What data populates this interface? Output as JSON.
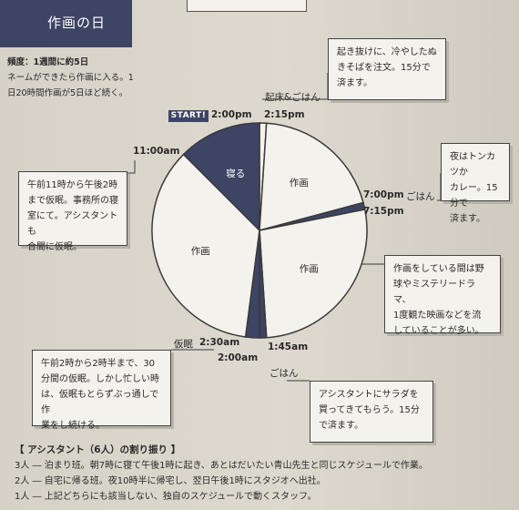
{
  "title": "作画の日",
  "intro": {
    "frequency": "頻度：1週間に約5日",
    "line1": "ネームができたら作画に入る。1",
    "line2": "日20時間作画が5日ほど続く。"
  },
  "start_badge": "START!",
  "times": {
    "t1400": "2:00pm",
    "t1415": "2:15pm",
    "t1100": "11:00am",
    "t1900": "7:00pm",
    "t1915": "7:15pm",
    "t0230": "2:30am",
    "t0200": "2:00am",
    "t0145": "1:45am"
  },
  "events": {
    "wake": "起床&ごはん",
    "dinner": "ごはん",
    "nap": "仮眠",
    "meal2": "ごはん"
  },
  "segments": {
    "sleep": "寝る",
    "work": "作画"
  },
  "notes": {
    "wakeup": [
      "起き抜けに、冷やしたぬ",
      "きそばを注文。15分で",
      "済ます。"
    ],
    "dinner": [
      "夜はトンカツか",
      "カレー。15分で",
      "済ます。"
    ],
    "work": [
      "作画をしている間は野",
      "球やミステリードラマ、",
      "1度観た映画などを流",
      "していることが多い。"
    ],
    "nap_afternoon": [
      "午前11時から午後2時",
      "まで仮眠。事務所の寝",
      "室にて。アシスタントも",
      "合間に仮眠。"
    ],
    "nap_night": [
      "午前2時から2時半まで、30",
      "分間の仮眠。しかし忙しい時",
      "は、仮眠もとらずぶっ通しで作",
      "業をし続ける。"
    ],
    "salad": [
      "アシスタントにサラダを",
      "買ってきてもらう。15分",
      "で済ます。"
    ]
  },
  "staff": {
    "heading": "【 アシスタント（6人）の割り振り 】",
    "rows": [
      "3人 ― 泊まり班。朝7時に寝て午後1時に起き、あとはだいたい青山先生と同じスケジュールで作業。",
      "2人 ― 自宅に帰る班。夜10時半に帰宅し、翌日午後1時にスタジオへ出社。",
      "1人 ― 上記どちらにも該当しない、独自のスケジュールで動くスタッフ。"
    ]
  },
  "colors": {
    "navy": "#3d4464",
    "paper": "#f4f2ec",
    "line": "#3a3a3a"
  },
  "chart_data": {
    "type": "pie",
    "unit": "hours of day",
    "start": "2:00pm",
    "slices": [
      {
        "label": "起床&ごはん",
        "from": "2:00pm",
        "to": "2:15pm",
        "hours": 0.25,
        "color": "#f4f2ec"
      },
      {
        "label": "作画",
        "from": "2:15pm",
        "to": "7:00pm",
        "hours": 4.75,
        "color": "#f4f2ec"
      },
      {
        "label": "ごはん",
        "from": "7:00pm",
        "to": "7:15pm",
        "hours": 0.25,
        "color": "#3d4464"
      },
      {
        "label": "作画",
        "from": "7:15pm",
        "to": "1:45am",
        "hours": 6.5,
        "color": "#f4f2ec"
      },
      {
        "label": "ごはん",
        "from": "1:45am",
        "to": "2:00am",
        "hours": 0.25,
        "color": "#3d4464"
      },
      {
        "label": "仮眠",
        "from": "2:00am",
        "to": "2:30am",
        "hours": 0.5,
        "color": "#3d4464"
      },
      {
        "label": "作画",
        "from": "2:30am",
        "to": "11:00am",
        "hours": 8.5,
        "color": "#f4f2ec"
      },
      {
        "label": "寝る",
        "from": "11:00am",
        "to": "2:00pm",
        "hours": 3,
        "color": "#3d4464"
      }
    ]
  }
}
